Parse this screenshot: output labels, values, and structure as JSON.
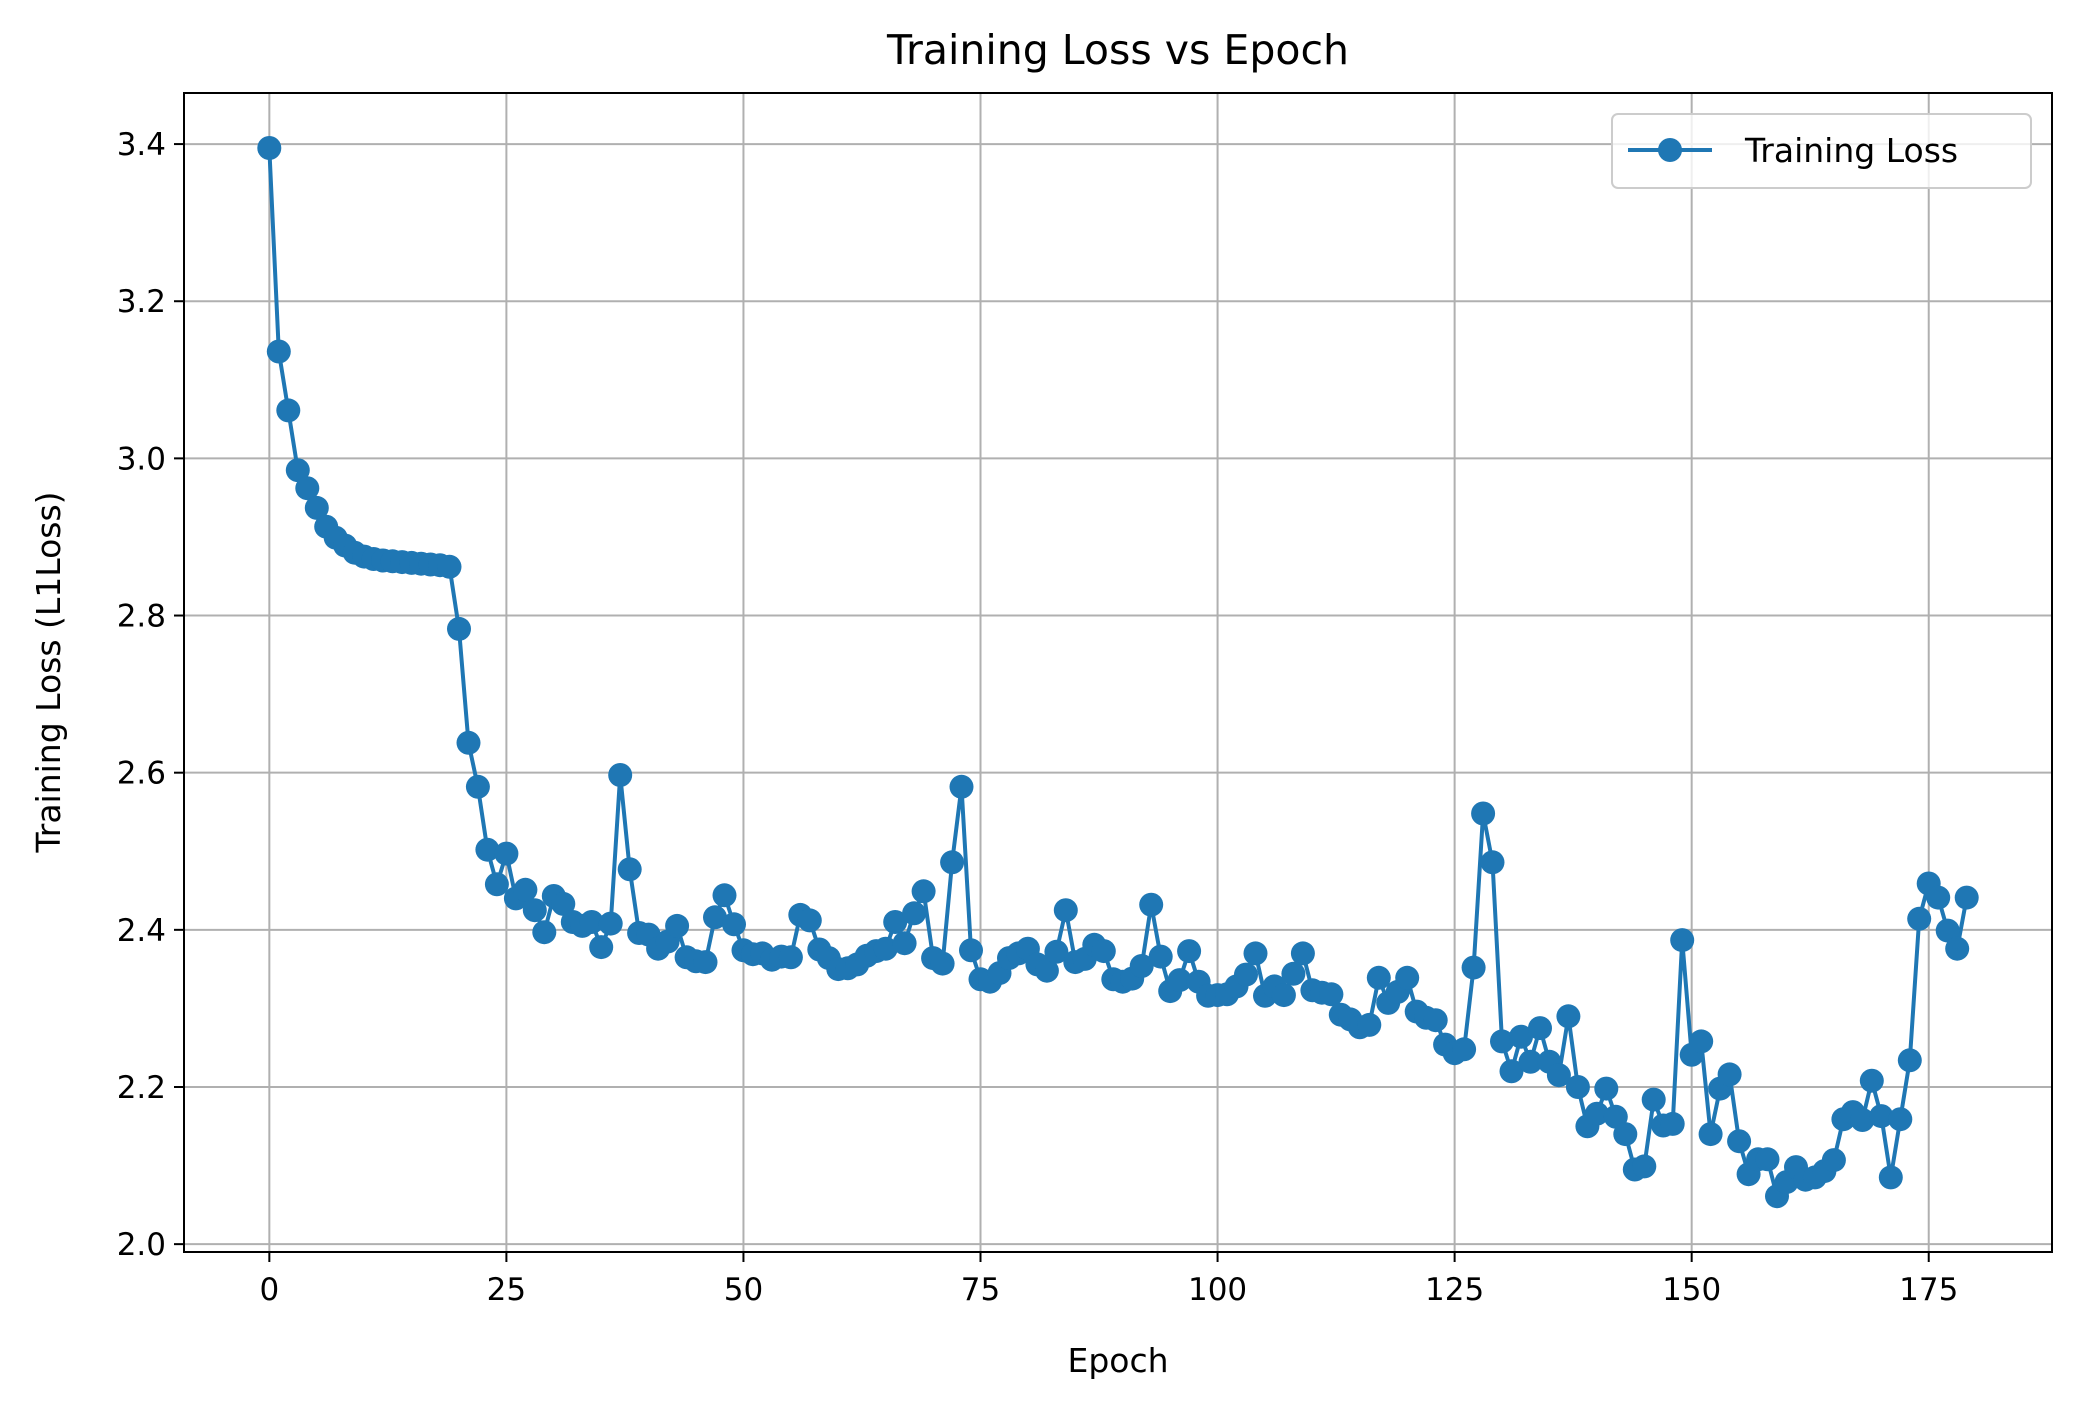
{
  "chart_data": {
    "type": "line",
    "title": "Training Loss vs Epoch",
    "xlabel": "Epoch",
    "ylabel": "Training Loss (L1Loss)",
    "xlim": [
      -9,
      188
    ],
    "ylim": [
      1.99,
      3.465
    ],
    "xticks": [
      0,
      25,
      50,
      75,
      100,
      125,
      150,
      175
    ],
    "xtick_labels": [
      "0",
      "25",
      "50",
      "75",
      "100",
      "125",
      "150",
      "175"
    ],
    "yticks": [
      2.0,
      2.2,
      2.4,
      2.6,
      2.8,
      3.0,
      3.2,
      3.4
    ],
    "ytick_labels": [
      "2.0",
      "2.2",
      "2.4",
      "2.6",
      "2.8",
      "3.0",
      "3.2",
      "3.4"
    ],
    "grid": true,
    "legend_position": "top-right",
    "colors": {
      "series": "#1f77b4",
      "grid": "#b0b0b0",
      "axis": "#000000"
    },
    "series": [
      {
        "name": "Training Loss",
        "marker": "circle",
        "x": [
          0,
          1,
          2,
          3,
          4,
          5,
          6,
          7,
          8,
          9,
          10,
          11,
          12,
          13,
          14,
          15,
          16,
          17,
          18,
          19,
          20,
          21,
          22,
          23,
          24,
          25,
          26,
          27,
          28,
          29,
          30,
          31,
          32,
          33,
          34,
          35,
          36,
          37,
          38,
          39,
          40,
          41,
          42,
          43,
          44,
          45,
          46,
          47,
          48,
          49,
          50,
          51,
          52,
          53,
          54,
          55,
          56,
          57,
          58,
          59,
          60,
          61,
          62,
          63,
          64,
          65,
          66,
          67,
          68,
          69,
          70,
          71,
          72,
          73,
          74,
          75,
          76,
          77,
          78,
          79,
          80,
          81,
          82,
          83,
          84,
          85,
          86,
          87,
          88,
          89,
          90,
          91,
          92,
          93,
          94,
          95,
          96,
          97,
          98,
          99,
          100,
          101,
          102,
          103,
          104,
          105,
          106,
          107,
          108,
          109,
          110,
          111,
          112,
          113,
          114,
          115,
          116,
          117,
          118,
          119,
          120,
          121,
          122,
          123,
          124,
          125,
          126,
          127,
          128,
          129,
          130,
          131,
          132,
          133,
          134,
          135,
          136,
          137,
          138,
          139,
          140,
          141,
          142,
          143,
          144,
          145,
          146,
          147,
          148,
          149,
          150,
          151,
          152,
          153,
          154,
          155,
          156,
          157,
          158,
          159,
          160,
          161,
          162,
          163,
          164,
          165,
          166,
          167,
          168,
          169,
          170,
          171,
          172,
          173,
          174,
          175,
          176,
          177,
          178,
          179
        ],
        "y": [
          3.395,
          3.136,
          3.061,
          2.985,
          2.962,
          2.937,
          2.913,
          2.899,
          2.889,
          2.88,
          2.875,
          2.872,
          2.87,
          2.869,
          2.868,
          2.867,
          2.866,
          2.865,
          2.864,
          2.862,
          2.783,
          2.638,
          2.582,
          2.502,
          2.458,
          2.497,
          2.44,
          2.451,
          2.425,
          2.397,
          2.443,
          2.433,
          2.41,
          2.405,
          2.41,
          2.378,
          2.408,
          2.597,
          2.477,
          2.396,
          2.394,
          2.376,
          2.385,
          2.405,
          2.365,
          2.36,
          2.359,
          2.416,
          2.444,
          2.407,
          2.374,
          2.369,
          2.37,
          2.362,
          2.366,
          2.365,
          2.419,
          2.412,
          2.375,
          2.364,
          2.35,
          2.351,
          2.356,
          2.367,
          2.373,
          2.376,
          2.41,
          2.383,
          2.421,
          2.449,
          2.364,
          2.357,
          2.486,
          2.582,
          2.374,
          2.337,
          2.334,
          2.345,
          2.364,
          2.37,
          2.376,
          2.356,
          2.348,
          2.372,
          2.425,
          2.359,
          2.363,
          2.381,
          2.373,
          2.337,
          2.334,
          2.338,
          2.354,
          2.432,
          2.366,
          2.322,
          2.336,
          2.373,
          2.334,
          2.316,
          2.317,
          2.318,
          2.328,
          2.343,
          2.37,
          2.316,
          2.328,
          2.317,
          2.344,
          2.37,
          2.323,
          2.32,
          2.318,
          2.292,
          2.286,
          2.276,
          2.279,
          2.339,
          2.307,
          2.321,
          2.339,
          2.296,
          2.288,
          2.285,
          2.254,
          2.243,
          2.248,
          2.352,
          2.548,
          2.486,
          2.258,
          2.22,
          2.264,
          2.232,
          2.275,
          2.232,
          2.215,
          2.29,
          2.2,
          2.15,
          2.166,
          2.198,
          2.162,
          2.14,
          2.095,
          2.099,
          2.184,
          2.151,
          2.153,
          2.387,
          2.241,
          2.258,
          2.14,
          2.198,
          2.216,
          2.131,
          2.089,
          2.108,
          2.108,
          2.061,
          2.079,
          2.098,
          2.082,
          2.085,
          2.093,
          2.107,
          2.159,
          2.168,
          2.158,
          2.208,
          2.163,
          2.085,
          2.159,
          2.234,
          2.414,
          2.459,
          2.441,
          2.399,
          2.376,
          2.441
        ]
      }
    ]
  }
}
